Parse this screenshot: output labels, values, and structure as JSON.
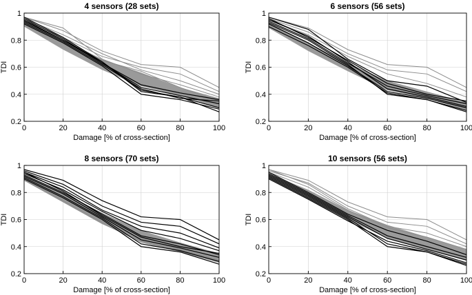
{
  "chart_data": [
    {
      "type": "line",
      "title": "4 sensors (28 sets)",
      "xlabel": "Damage [% of cross-section]",
      "ylabel": "TDI",
      "x": [
        0,
        20,
        40,
        60,
        80,
        100
      ],
      "xticks": [
        "0",
        "20",
        "40",
        "60",
        "80",
        "100"
      ],
      "yticks": [
        "0.2",
        "0.4",
        "0.6",
        "0.8",
        "1"
      ],
      "xlim": [
        0,
        100
      ],
      "ylim": [
        0.2,
        1.0
      ],
      "grid": true,
      "highlight_color": "#000000",
      "background_color": "#8c8c8c",
      "band_color": "#9a9a9a",
      "highlight_series": [
        {
          "name": "h1",
          "values": [
            0.97,
            0.82,
            0.64,
            0.42,
            0.38,
            0.3
          ]
        },
        {
          "name": "h2",
          "values": [
            0.95,
            0.8,
            0.63,
            0.45,
            0.39,
            0.33
          ]
        },
        {
          "name": "h3",
          "values": [
            0.93,
            0.79,
            0.62,
            0.44,
            0.37,
            0.35
          ]
        },
        {
          "name": "h4",
          "values": [
            0.92,
            0.78,
            0.61,
            0.4,
            0.36,
            0.29
          ]
        },
        {
          "name": "h5",
          "values": [
            0.96,
            0.81,
            0.63,
            0.47,
            0.41,
            0.36
          ]
        },
        {
          "name": "h6",
          "values": [
            0.94,
            0.8,
            0.64,
            0.43,
            0.38,
            0.27
          ]
        }
      ],
      "background_series": [
        {
          "name": "b1",
          "values": [
            0.97,
            0.87,
            0.72,
            0.62,
            0.6,
            0.45
          ]
        },
        {
          "name": "b2",
          "values": [
            0.96,
            0.84,
            0.7,
            0.58,
            0.5,
            0.4
          ]
        },
        {
          "name": "b3",
          "values": [
            0.97,
            0.89,
            0.66,
            0.55,
            0.47,
            0.38
          ]
        },
        {
          "name": "b4",
          "values": [
            0.95,
            0.82,
            0.68,
            0.6,
            0.55,
            0.42
          ]
        },
        {
          "name": "b5",
          "values": [
            0.93,
            0.8,
            0.65,
            0.57,
            0.45,
            0.35
          ]
        }
      ],
      "band": {
        "upper": [
          0.95,
          0.8,
          0.66,
          0.56,
          0.45,
          0.37
        ],
        "lower": [
          0.9,
          0.73,
          0.58,
          0.46,
          0.39,
          0.3
        ]
      }
    },
    {
      "type": "line",
      "title": "6 sensors (56 sets)",
      "xlabel": "Damage [% of cross-section]",
      "ylabel": "TDI",
      "x": [
        0,
        20,
        40,
        60,
        80,
        100
      ],
      "xticks": [
        "0",
        "20",
        "40",
        "60",
        "80",
        "100"
      ],
      "yticks": [
        "0.2",
        "0.4",
        "0.6",
        "0.8",
        "1"
      ],
      "xlim": [
        0,
        100
      ],
      "ylim": [
        0.2,
        1.0
      ],
      "grid": true,
      "highlight_color": "#000000",
      "background_color": "#8c8c8c",
      "band_color": "#9a9a9a",
      "highlight_series": [
        {
          "name": "h1",
          "values": [
            0.97,
            0.88,
            0.66,
            0.5,
            0.46,
            0.34
          ]
        },
        {
          "name": "h2",
          "values": [
            0.95,
            0.83,
            0.64,
            0.44,
            0.38,
            0.31
          ]
        },
        {
          "name": "h3",
          "values": [
            0.93,
            0.8,
            0.62,
            0.4,
            0.36,
            0.28
          ]
        },
        {
          "name": "h4",
          "values": [
            0.96,
            0.82,
            0.65,
            0.48,
            0.4,
            0.35
          ]
        },
        {
          "name": "h5",
          "values": [
            0.92,
            0.78,
            0.61,
            0.42,
            0.37,
            0.3
          ]
        },
        {
          "name": "h6",
          "values": [
            0.94,
            0.81,
            0.63,
            0.46,
            0.39,
            0.33
          ]
        },
        {
          "name": "h7",
          "values": [
            0.9,
            0.76,
            0.6,
            0.41,
            0.36,
            0.27
          ]
        }
      ],
      "background_series": [
        {
          "name": "b1",
          "values": [
            0.97,
            0.89,
            0.73,
            0.62,
            0.6,
            0.45
          ]
        },
        {
          "name": "b2",
          "values": [
            0.96,
            0.86,
            0.7,
            0.58,
            0.55,
            0.42
          ]
        },
        {
          "name": "b3",
          "values": [
            0.95,
            0.84,
            0.68,
            0.55,
            0.48,
            0.38
          ]
        }
      ],
      "band": {
        "upper": [
          0.93,
          0.78,
          0.63,
          0.5,
          0.42,
          0.34
        ],
        "lower": [
          0.89,
          0.72,
          0.57,
          0.43,
          0.37,
          0.28
        ]
      }
    },
    {
      "type": "line",
      "title": "8 sensors (70 sets)",
      "xlabel": "Damage [% of cross-section]",
      "ylabel": "TDI",
      "x": [
        0,
        20,
        40,
        60,
        80,
        100
      ],
      "xticks": [
        "0",
        "20",
        "40",
        "60",
        "80",
        "100"
      ],
      "yticks": [
        "0.2",
        "0.4",
        "0.6",
        "0.8",
        "1"
      ],
      "xlim": [
        0,
        100
      ],
      "ylim": [
        0.2,
        1.0
      ],
      "grid": true,
      "highlight_color": "#000000",
      "background_color": "#8c8c8c",
      "band_color": "#9a9a9a",
      "highlight_series": [
        {
          "name": "h1",
          "values": [
            0.97,
            0.89,
            0.74,
            0.62,
            0.6,
            0.45
          ]
        },
        {
          "name": "h2",
          "values": [
            0.96,
            0.86,
            0.7,
            0.58,
            0.55,
            0.42
          ]
        },
        {
          "name": "h3",
          "values": [
            0.95,
            0.84,
            0.67,
            0.55,
            0.5,
            0.39
          ]
        },
        {
          "name": "h4",
          "values": [
            0.94,
            0.82,
            0.66,
            0.52,
            0.46,
            0.37
          ]
        },
        {
          "name": "h5",
          "values": [
            0.93,
            0.8,
            0.64,
            0.48,
            0.42,
            0.34
          ]
        },
        {
          "name": "h6",
          "values": [
            0.92,
            0.79,
            0.62,
            0.45,
            0.39,
            0.32
          ]
        },
        {
          "name": "h7",
          "values": [
            0.91,
            0.77,
            0.61,
            0.42,
            0.37,
            0.29
          ]
        },
        {
          "name": "h8",
          "values": [
            0.9,
            0.76,
            0.6,
            0.4,
            0.36,
            0.27
          ]
        },
        {
          "name": "h9",
          "values": [
            0.95,
            0.81,
            0.63,
            0.47,
            0.4,
            0.35
          ]
        }
      ],
      "background_series": [
        {
          "name": "b1",
          "values": [
            0.9,
            0.74,
            0.58,
            0.46,
            0.38,
            0.3
          ]
        },
        {
          "name": "b2",
          "values": [
            0.89,
            0.73,
            0.57,
            0.44,
            0.37,
            0.29
          ]
        }
      ],
      "band": {
        "upper": [
          0.93,
          0.8,
          0.65,
          0.52,
          0.43,
          0.35
        ],
        "lower": [
          0.89,
          0.73,
          0.57,
          0.43,
          0.36,
          0.28
        ]
      }
    },
    {
      "type": "line",
      "title": "10 sensors (56 sets)",
      "xlabel": "Damage [% of cross-section]",
      "ylabel": "TDI",
      "x": [
        0,
        20,
        40,
        60,
        80,
        100
      ],
      "xticks": [
        "0",
        "20",
        "40",
        "60",
        "80",
        "100"
      ],
      "yticks": [
        "0.2",
        "0.4",
        "0.6",
        "0.8",
        "1"
      ],
      "xlim": [
        0,
        100
      ],
      "ylim": [
        0.2,
        1.0
      ],
      "grid": true,
      "highlight_color": "#000000",
      "background_color": "#8c8c8c",
      "band_color": "#9a9a9a",
      "highlight_series": [
        {
          "name": "h1",
          "values": [
            0.95,
            0.8,
            0.64,
            0.52,
            0.44,
            0.34
          ]
        },
        {
          "name": "h2",
          "values": [
            0.93,
            0.78,
            0.62,
            0.46,
            0.38,
            0.3
          ]
        },
        {
          "name": "h3",
          "values": [
            0.92,
            0.77,
            0.61,
            0.42,
            0.36,
            0.27
          ]
        },
        {
          "name": "h4",
          "values": [
            0.91,
            0.76,
            0.6,
            0.4,
            0.36,
            0.26
          ]
        },
        {
          "name": "h5",
          "values": [
            0.94,
            0.79,
            0.63,
            0.48,
            0.4,
            0.32
          ]
        },
        {
          "name": "h6",
          "values": [
            0.9,
            0.75,
            0.59,
            0.44,
            0.37,
            0.28
          ]
        }
      ],
      "background_series": [
        {
          "name": "b1",
          "values": [
            0.97,
            0.89,
            0.73,
            0.62,
            0.6,
            0.45
          ]
        },
        {
          "name": "b2",
          "values": [
            0.96,
            0.87,
            0.7,
            0.58,
            0.55,
            0.42
          ]
        },
        {
          "name": "b3",
          "values": [
            0.97,
            0.86,
            0.68,
            0.55,
            0.5,
            0.4
          ]
        },
        {
          "name": "b4",
          "values": [
            0.95,
            0.84,
            0.67,
            0.54,
            0.47,
            0.38
          ]
        }
      ],
      "band": {
        "upper": [
          0.94,
          0.82,
          0.67,
          0.56,
          0.47,
          0.38
        ],
        "lower": [
          0.9,
          0.75,
          0.6,
          0.46,
          0.38,
          0.3
        ]
      }
    }
  ]
}
